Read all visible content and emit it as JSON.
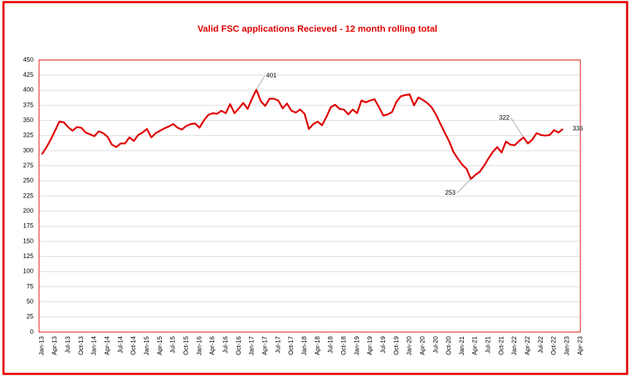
{
  "chart_data": {
    "type": "line",
    "title": "Valid FSC applications Recieved   - 12 month rolling total",
    "categories": [
      "Jan-13",
      null,
      null,
      "Apr-13",
      null,
      null,
      "Jul-13",
      null,
      null,
      "Oct-13",
      null,
      null,
      "Jan-14",
      null,
      null,
      "Apr-14",
      null,
      null,
      "Jul-14",
      null,
      null,
      "Oct-14",
      null,
      null,
      "Jan-15",
      null,
      null,
      "Apr-15",
      null,
      null,
      "Jul-15",
      null,
      null,
      "Oct-15",
      null,
      null,
      "Jan-16",
      null,
      null,
      "Apr-16",
      null,
      null,
      "Jul-16",
      null,
      null,
      "Oct-16",
      null,
      null,
      "Jan-17",
      null,
      null,
      "Apr-17",
      null,
      null,
      "Jul-17",
      null,
      null,
      "Oct-17",
      null,
      null,
      "Jan-18",
      null,
      null,
      "Apr-18",
      null,
      null,
      "Jul-18",
      null,
      null,
      "Oct-18",
      null,
      null,
      "Jan-19",
      null,
      null,
      "Apr-19",
      null,
      null,
      "Jul-19",
      null,
      null,
      "Oct-19",
      null,
      null,
      "Jan-20",
      null,
      null,
      "Apr-20",
      null,
      null,
      "Jul-20",
      null,
      null,
      "Oct-20",
      null,
      null,
      "Jan-21",
      null,
      null,
      "Apr-21",
      null,
      null,
      "Jul-21",
      null,
      null,
      "Oct-21",
      null,
      null,
      "Jan-22",
      null,
      null,
      "Apr-22",
      null,
      null,
      "Jul-22",
      null,
      null,
      "Oct-22",
      null,
      null,
      "Jan-23",
      null,
      null,
      "Apr-23"
    ],
    "series": [
      {
        "name": "Valid FSC applications",
        "color": "#e00000",
        "values": [
          294,
          305,
          318,
          333,
          348,
          347,
          339,
          333,
          339,
          338,
          330,
          327,
          324,
          332,
          329,
          323,
          310,
          306,
          312,
          312,
          322,
          316,
          326,
          330,
          336,
          322,
          329,
          333,
          337,
          340,
          344,
          338,
          335,
          341,
          344,
          345,
          338,
          350,
          359,
          362,
          361,
          366,
          362,
          377,
          362,
          370,
          379,
          369,
          386,
          401,
          382,
          374,
          386,
          386,
          383,
          370,
          378,
          366,
          363,
          368,
          361,
          336,
          344,
          348,
          342,
          356,
          372,
          376,
          369,
          368,
          360,
          368,
          362,
          383,
          380,
          383,
          385,
          372,
          358,
          360,
          364,
          381,
          390,
          392,
          393,
          375,
          388,
          384,
          379,
          372,
          360,
          345,
          330,
          316,
          298,
          287,
          277,
          270,
          253,
          260,
          265,
          275,
          287,
          298,
          306,
          297,
          315,
          310,
          309,
          316,
          322,
          312,
          318,
          329,
          326,
          325,
          326,
          334,
          330,
          336,
          null,
          null,
          null,
          null
        ]
      }
    ],
    "data_labels_at": [
      49,
      98,
      110,
      119
    ],
    "ylim": [
      0,
      450
    ],
    "yticks": [
      0,
      25,
      50,
      75,
      100,
      125,
      150,
      175,
      200,
      225,
      250,
      275,
      300,
      325,
      350,
      375,
      400,
      425,
      450
    ],
    "grid": true
  }
}
